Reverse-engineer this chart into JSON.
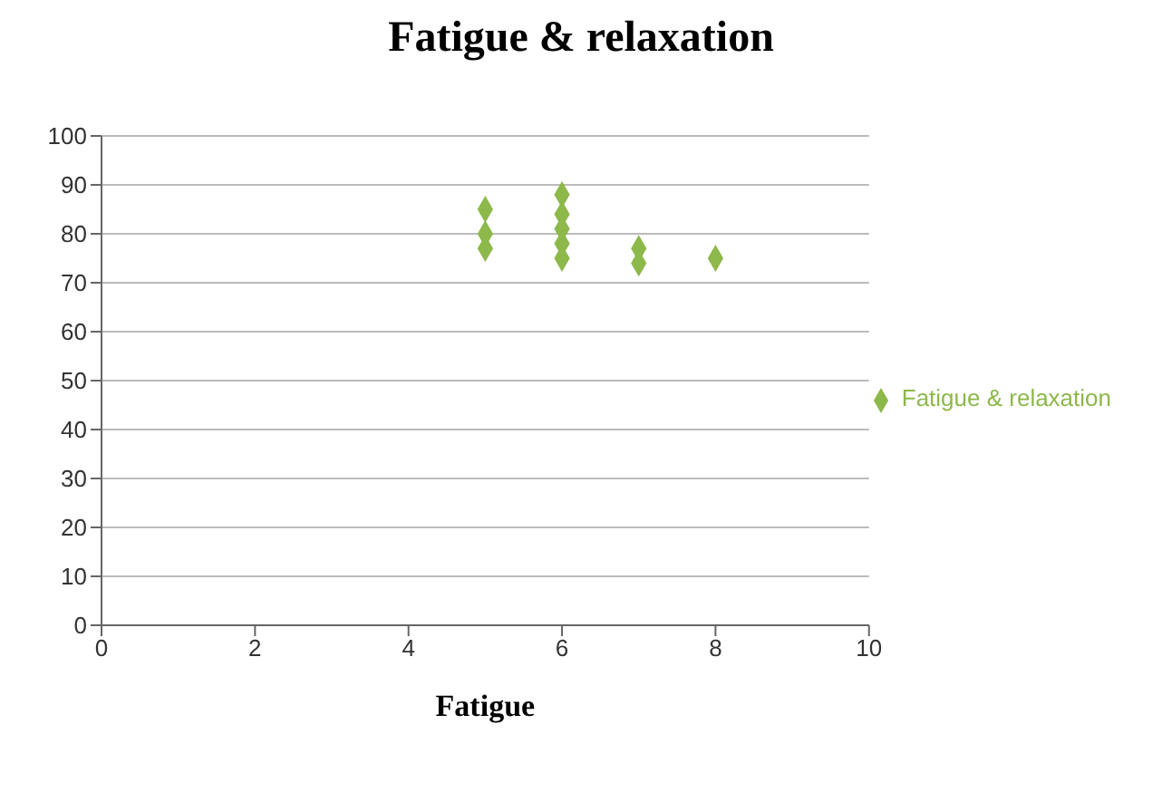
{
  "chart_data": {
    "type": "scatter",
    "title": "Fatigue & relaxation",
    "xlabel": "Fatigue",
    "x": [
      5,
      5,
      5,
      6,
      6,
      6,
      6,
      6,
      7,
      7,
      8
    ],
    "series": [
      {
        "name": "Fatigue & relaxation",
        "color": "#8db84a",
        "values": [
          85,
          80,
          77,
          88,
          84,
          81,
          78,
          75,
          77,
          74,
          75
        ]
      }
    ],
    "xlim": [
      0,
      10
    ],
    "xticks": [
      0,
      2,
      4,
      6,
      8,
      10
    ],
    "ylim": [
      0,
      100
    ],
    "yticks": [
      0,
      10,
      20,
      30,
      40,
      50,
      60,
      70,
      80,
      90,
      100
    ],
    "grid": "y",
    "legend": "right",
    "marker": "diamond"
  }
}
